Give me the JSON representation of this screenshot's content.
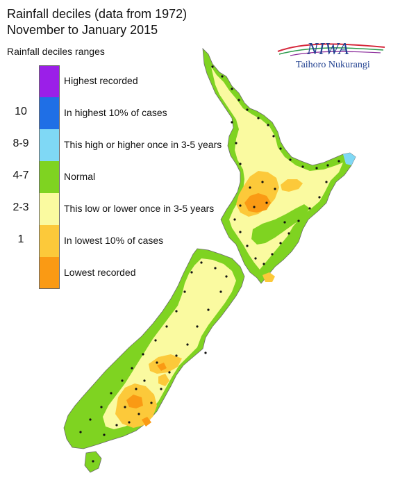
{
  "title_line1": "Rainfall deciles (data from 1972)",
  "title_line2": "November to January 2015",
  "legend": {
    "heading": "Rainfall deciles ranges",
    "items": [
      {
        "range": "",
        "label": "Highest recorded",
        "color": "#9b1fe8"
      },
      {
        "range": "10",
        "label": "In highest 10% of cases",
        "color": "#1f6fe6"
      },
      {
        "range": "8-9",
        "label": "This high or higher once in 3-5 years",
        "color": "#7fd8f5"
      },
      {
        "range": "4-7",
        "label": "Normal",
        "color": "#7fd321"
      },
      {
        "range": "2-3",
        "label": "This low or lower once in 3-5 years",
        "color": "#fafaa0"
      },
      {
        "range": "1",
        "label": "In lowest 10% of cases",
        "color": "#fcc93a"
      },
      {
        "range": "",
        "label": "Lowest recorded",
        "color": "#fa9a14"
      }
    ]
  },
  "logo": {
    "name": "NIWA",
    "subtitle": "Taihoro Nukurangi"
  }
}
